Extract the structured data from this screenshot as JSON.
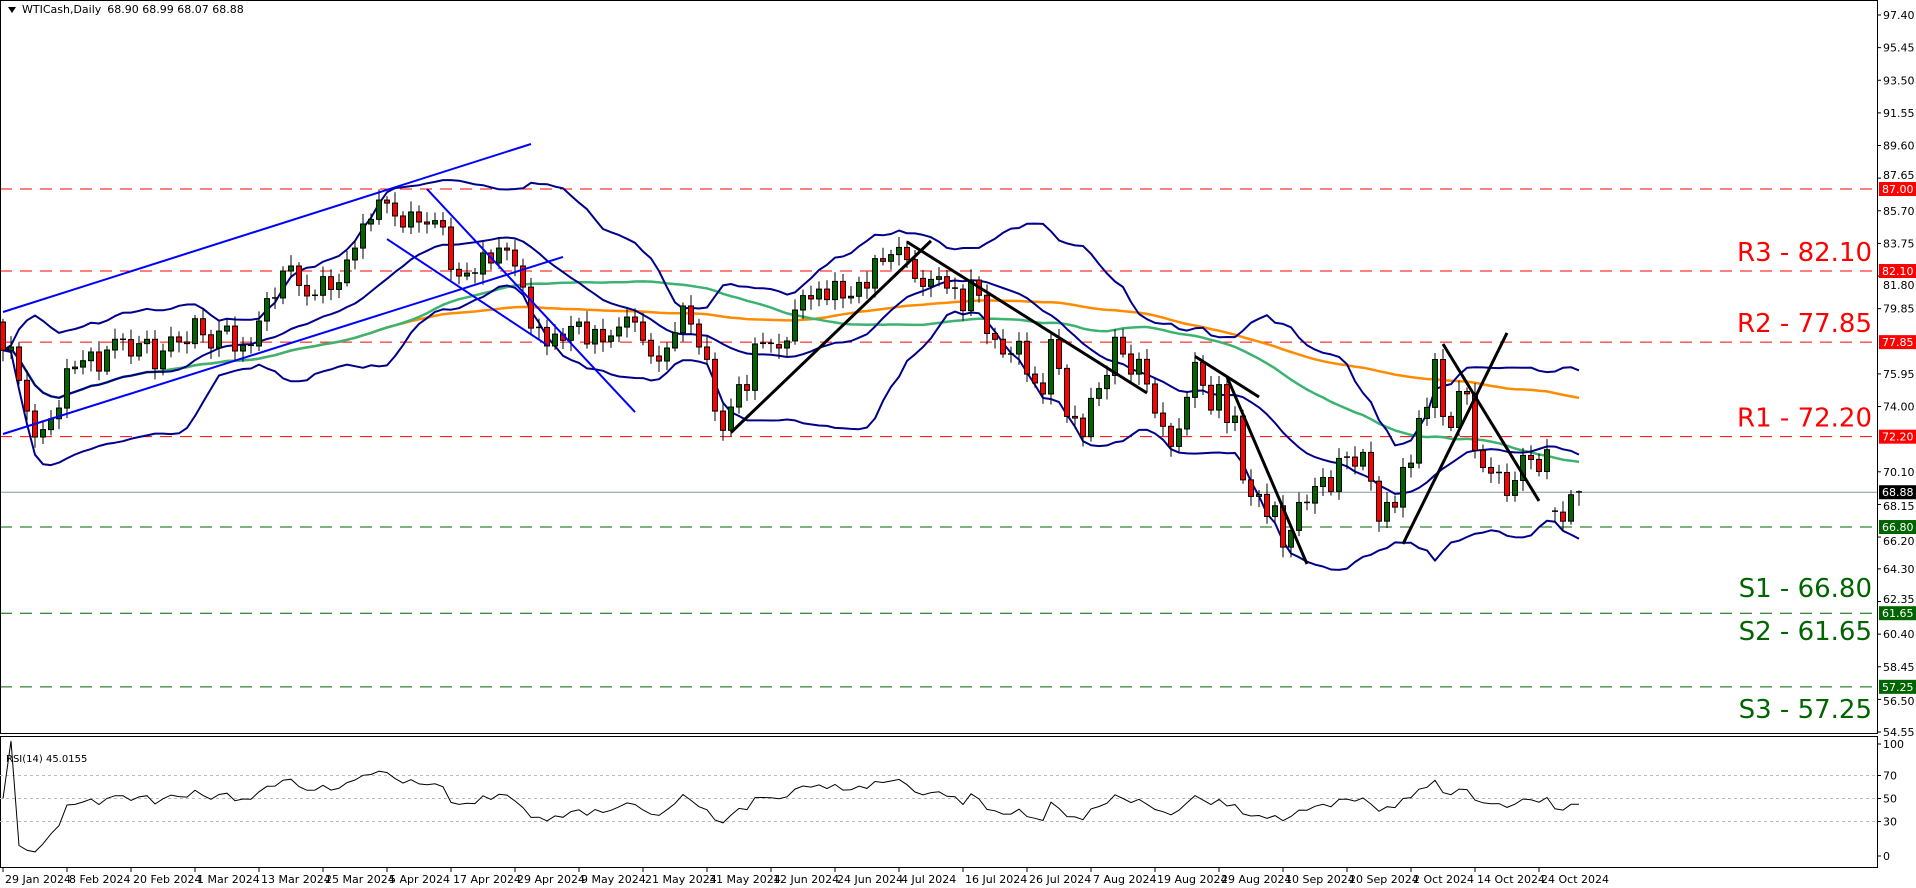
{
  "header": {
    "symbol_label": "WTICash,Daily",
    "ohlc": "68.90 68.99 68.07 68.88"
  },
  "chart_data": {
    "type": "candlestick",
    "symbol": "WTICash",
    "timeframe": "Daily",
    "y_axis": {
      "range": [
        54.55,
        97.4
      ],
      "ticks": [
        "97.40",
        "95.45",
        "93.50",
        "91.55",
        "89.60",
        "87.65",
        "85.70",
        "83.75",
        "81.80",
        "79.85",
        "75.95",
        "74.00",
        "70.10",
        "68.15",
        "66.20",
        "64.30",
        "62.35",
        "60.40",
        "58.45",
        "56.50",
        "54.55"
      ]
    },
    "x_axis": {
      "tick_labels": [
        "29 Jan 2024",
        "8 Feb 2024",
        "20 Feb 2024",
        "1 Mar 2024",
        "13 Mar 2024",
        "25 Mar 2024",
        "5 Apr 2024",
        "17 Apr 2024",
        "29 Apr 2024",
        "9 May 2024",
        "21 May 2024",
        "31 May 2024",
        "12 Jun 2024",
        "24 Jun 2024",
        "4 Jul 2024",
        "16 Jul 2024",
        "26 Jul 2024",
        "7 Aug 2024",
        "19 Aug 2024",
        "29 Aug 2024",
        "10 Sep 2024",
        "20 Sep 2024",
        "2 Oct 2024",
        "14 Oct 2024",
        "24 Oct 2024"
      ]
    },
    "close": [
      77.36,
      77.56,
      75.57,
      73.73,
      72.18,
      72.62,
      73.27,
      73.91,
      76.26,
      76.36,
      76.74,
      77.26,
      76.12,
      77.38,
      78.02,
      78.0,
      77.02,
      77.76,
      78.02,
      76.26,
      77.32,
      78.16,
      77.86,
      77.76,
      79.25,
      78.29,
      77.5,
      78.51,
      78.81,
      77.32,
      77.66,
      77.62,
      79.11,
      80.45,
      80.49,
      82.1,
      82.4,
      81.24,
      80.61,
      80.65,
      81.76,
      81.0,
      81.4,
      82.76,
      83.47,
      84.91,
      85.19,
      86.34,
      86.16,
      85.39,
      84.73,
      85.63,
      85.03,
      84.91,
      85.11,
      84.73,
      82.2,
      81.8,
      81.98,
      81.92,
      83.18,
      82.58,
      83.47,
      83.35,
      82.4,
      81.14,
      78.69,
      78.73,
      77.62,
      78.33,
      77.96,
      78.79,
      79.05,
      77.74,
      78.61,
      77.9,
      78.22,
      78.75,
      79.35,
      79.05,
      77.96,
      77.02,
      76.72,
      77.5,
      78.41,
      80.01,
      78.93,
      77.56,
      76.82,
      73.73,
      72.58,
      73.97,
      75.31,
      74.97,
      77.74,
      77.78,
      77.7,
      77.5,
      77.92,
      79.77,
      80.63,
      80.43,
      81.02,
      80.39,
      81.48,
      80.49,
      80.59,
      81.42,
      81.08,
      82.84,
      82.68,
      83.08,
      83.51,
      82.78,
      81.66,
      81.18,
      81.6,
      81.76,
      81.08,
      81.02,
      79.73,
      81.56,
      80.65,
      78.37,
      78.02,
      77.14,
      77.14,
      77.9,
      75.94,
      75.41,
      74.75,
      78.0,
      76.28,
      73.41,
      73.31,
      72.2,
      74.49,
      75.07,
      75.86,
      78.14,
      77.14,
      75.94,
      76.82,
      75.35,
      73.61,
      72.82,
      71.62,
      72.66,
      74.55,
      76.64,
      75.27,
      73.79,
      75.31,
      73.05,
      73.43,
      69.62,
      68.63,
      68.75,
      67.43,
      68.07,
      65.6,
      66.6,
      68.27,
      68.23,
      69.22,
      69.76,
      68.93,
      70.9,
      70.98,
      70.44,
      71.26,
      69.54,
      67.15,
      68.27,
      67.99,
      70.36,
      70.62,
      73.29,
      73.95,
      76.81,
      73.41,
      72.75,
      74.9,
      74.76,
      71.38,
      70.36,
      70.02,
      70.06,
      68.69,
      69.58,
      71.08,
      70.84,
      70.12,
      71.42,
      67.69,
      67.15,
      68.73,
      68.88
    ],
    "open_overrides": {
      "0": 79.05,
      "194": 67.75,
      "197": 68.9
    },
    "last_bar": {
      "open": 68.9,
      "high": 68.99,
      "low": 68.07,
      "close": 68.88
    },
    "current_price": {
      "value": 68.88,
      "label": "68.88",
      "color": "#000000"
    },
    "levels": [
      {
        "value": 87.0,
        "box": "87.00",
        "text": "",
        "color": "#FF0000"
      },
      {
        "value": 82.1,
        "box": "82.10",
        "text": "R3 - 82.10",
        "color": "#FF0000"
      },
      {
        "value": 77.85,
        "box": "77.85",
        "text": "R2 - 77.85",
        "color": "#FF0000"
      },
      {
        "value": 72.2,
        "box": "72.20",
        "text": "R1 - 72.20",
        "color": "#FF0000"
      },
      {
        "value": 66.8,
        "box": "66.80",
        "text": "S1 - 66.80",
        "color": "#006400"
      },
      {
        "value": 61.65,
        "box": "61.65",
        "text": "S2 - 61.65",
        "color": "#006400"
      },
      {
        "value": 57.25,
        "box": "57.25",
        "text": "S3 - 57.25",
        "color": "#006400"
      }
    ],
    "trendlines": [
      {
        "color": "#0000FF",
        "from": {
          "date": "29 Jan 2024",
          "price": 79.65
        },
        "to": {
          "date": "1 May 2024",
          "price": 89.69
        }
      },
      {
        "color": "#0000FF",
        "from": {
          "date": "29 Jan 2024",
          "price": 72.36
        },
        "to": {
          "date": "7 May 2024",
          "price": 82.94
        }
      },
      {
        "color": "#0000FF",
        "from": {
          "date": "12 Apr 2024",
          "price": 87.0
        },
        "to": {
          "date": "20 May 2024",
          "price": 73.67
        }
      },
      {
        "color": "#0000FF",
        "from": {
          "date": "5 Apr 2024",
          "price": 84.01
        },
        "to": {
          "date": "3 May 2024",
          "price": 77.68
        }
      },
      {
        "color": "#000000",
        "from": {
          "date": "5 Jun 2024",
          "price": 72.45
        },
        "to": {
          "date": "10 Jul 2024",
          "price": 83.9
        }
      },
      {
        "color": "#000000",
        "from": {
          "date": "5 Jul 2024",
          "price": 83.84
        },
        "to": {
          "date": "16 Aug 2024",
          "price": 74.81
        }
      },
      {
        "color": "#000000",
        "from": {
          "date": "26 Aug 2024",
          "price": 77.0
        },
        "to": {
          "date": "5 Sep 2024",
          "price": 74.57
        }
      },
      {
        "color": "#000000",
        "from": {
          "date": "30 Aug 2024",
          "price": 75.77
        },
        "to": {
          "date": "13 Sep 2024",
          "price": 64.59
        }
      },
      {
        "color": "#000000",
        "from": {
          "date": "1 Oct 2024",
          "price": 65.79
        },
        "to": {
          "date": "18 Oct 2024",
          "price": 78.4
        }
      },
      {
        "color": "#000000",
        "from": {
          "date": "8 Oct 2024",
          "price": 77.74
        },
        "to": {
          "date": "24 Oct 2024",
          "price": 68.36
        }
      }
    ],
    "indicators": {
      "bollinger_color": "#00008B",
      "ma_fast_color": "#3CB371",
      "ma_slow_color": "#FF8C00"
    },
    "candle_colors": {
      "up": "#006400",
      "down": "#FF0000",
      "outline": "#000000"
    },
    "rsi": {
      "label": "RSI(14) 45.0155",
      "value": 45.0155,
      "levels": [
        70,
        50,
        30
      ],
      "ticks": [
        "100",
        "70",
        "50",
        "30",
        "0"
      ],
      "range": [
        0,
        100
      ]
    }
  }
}
